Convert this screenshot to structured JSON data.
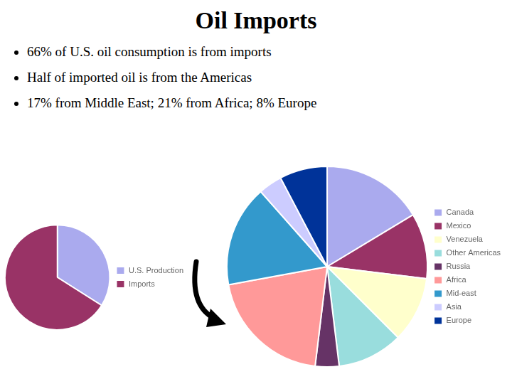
{
  "title": "Oil Imports",
  "annotations": [
    "66% of U.S. oil consumption is from imports",
    "Half of imported oil is from the Americas",
    "17% from Middle East; 21% from Africa; 8% Europe"
  ],
  "chart_data": [
    {
      "type": "pie",
      "categories": [
        "U.S. Production",
        "Imports"
      ],
      "values": [
        34,
        66
      ],
      "colors": [
        "#aaaaee",
        "#993366"
      ],
      "legend": "right"
    },
    {
      "type": "pie",
      "categories": [
        "Canada",
        "Mexico",
        "Venezuela",
        "Other Americas",
        "Russia",
        "Africa",
        "Mid-east",
        "Asia",
        "Europe"
      ],
      "values": [
        17,
        11,
        11,
        11,
        4,
        21,
        17,
        4,
        8
      ],
      "colors": [
        "#aaaaee",
        "#993366",
        "#ffffcc",
        "#99dddd",
        "#663366",
        "#ff9999",
        "#3399cc",
        "#ccccff",
        "#003399"
      ],
      "legend": "right"
    }
  ]
}
